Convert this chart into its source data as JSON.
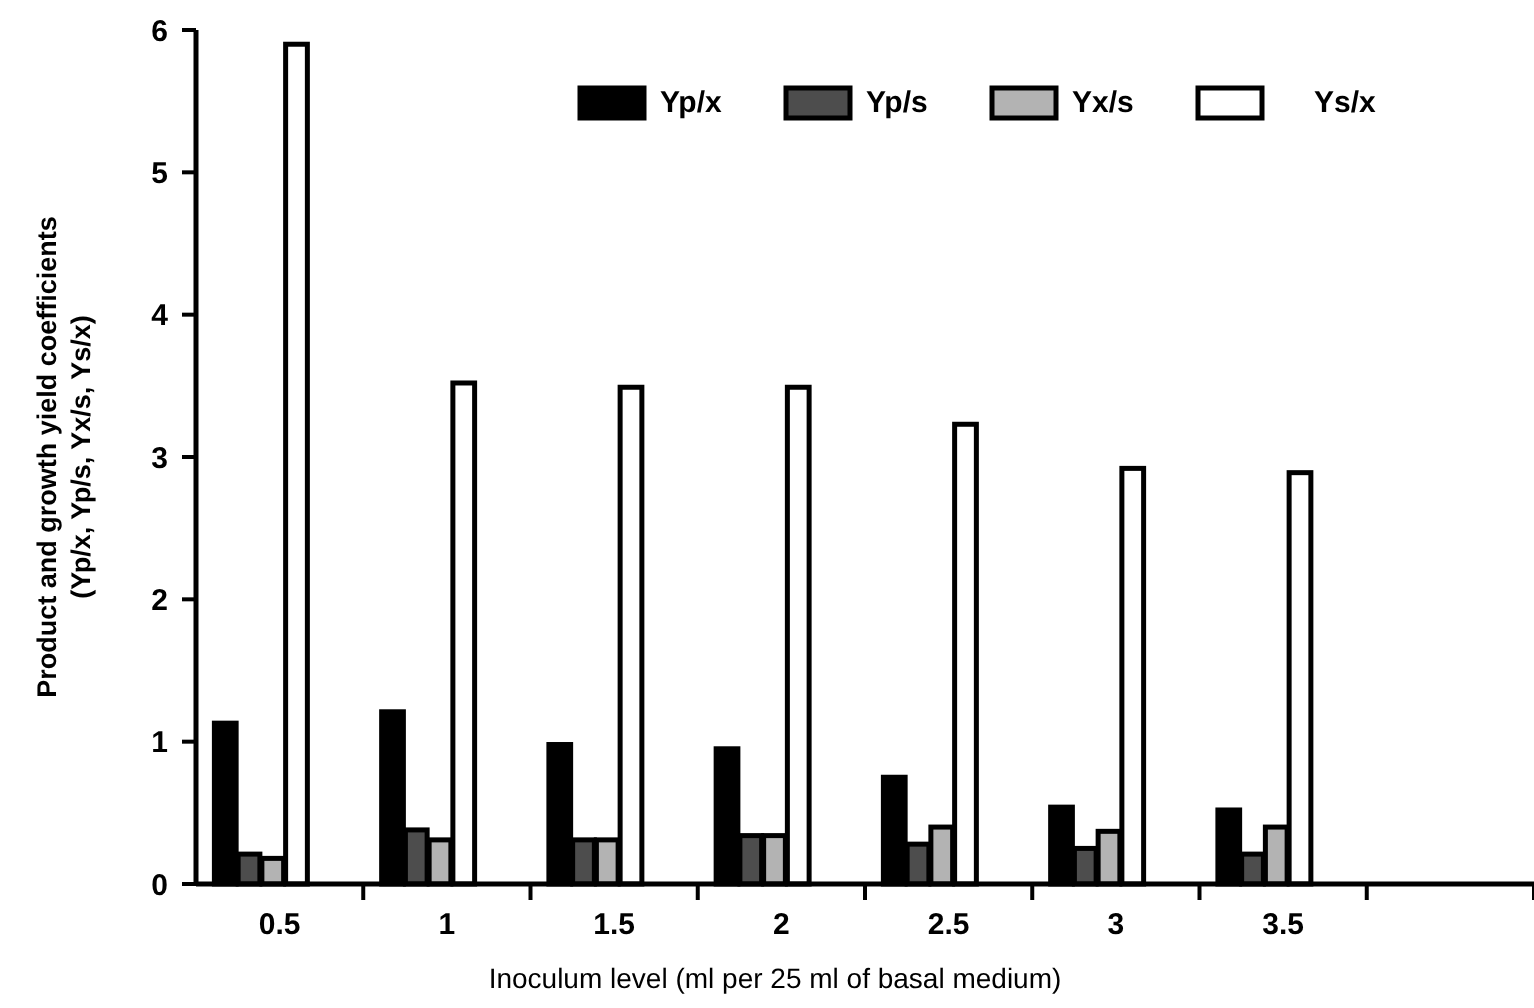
{
  "chart_data": {
    "type": "bar",
    "xlabel": "Inoculum level (ml per 25 ml of basal medium)",
    "ylabel": "Product and growth yield coefficients\n(Yp/x, Yp/s, Yx/s, Ys/x)",
    "categories": [
      "0.5",
      "1",
      "1.5",
      "2",
      "2.5",
      "3",
      "3.5",
      null
    ],
    "series": [
      {
        "name": "Yp/x",
        "color": "#000000",
        "values": [
          1.13,
          1.21,
          0.98,
          0.95,
          0.75,
          0.54,
          0.52,
          null
        ]
      },
      {
        "name": "Yp/s",
        "color": "#4d4d4d",
        "values": [
          0.21,
          0.38,
          0.31,
          0.34,
          0.28,
          0.25,
          0.21,
          null
        ]
      },
      {
        "name": "Yx/s",
        "color": "#b3b3b3",
        "values": [
          0.18,
          0.31,
          0.31,
          0.34,
          0.4,
          0.37,
          0.4,
          null
        ]
      },
      {
        "name": "Ys/x",
        "color": "#ffffff",
        "values": [
          5.9,
          3.52,
          3.49,
          3.49,
          3.23,
          2.92,
          2.89,
          null
        ]
      }
    ],
    "ylim": [
      0,
      6
    ],
    "yticks": [
      0,
      1,
      2,
      3,
      4,
      5,
      6
    ],
    "grid": false,
    "legend": "top right"
  }
}
